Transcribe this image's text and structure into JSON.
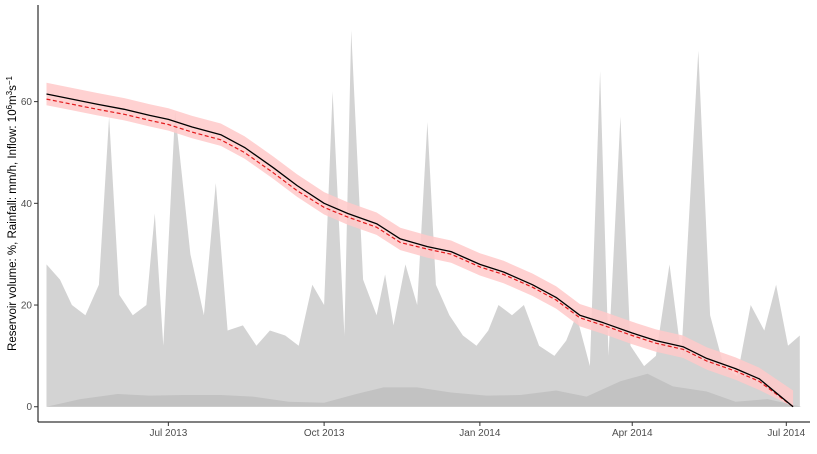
{
  "chart_data": {
    "type": "area",
    "title": "",
    "xlabel": "",
    "ylabel_parts": [
      "Reservoir volume: %, Rainfall: mm/h, Inflow: 10",
      "6",
      "m",
      "3",
      "s",
      "−1"
    ],
    "xlim": [
      "2013-04-15",
      "2014-07-15"
    ],
    "ylim": [
      -3,
      79
    ],
    "x_ticks": [
      {
        "date": "2013-07-01",
        "label": "Jul 2013"
      },
      {
        "date": "2013-10-01",
        "label": "Oct 2013"
      },
      {
        "date": "2014-01-01",
        "label": "Jan 2014"
      },
      {
        "date": "2014-04-01",
        "label": "Apr 2014"
      },
      {
        "date": "2014-07-01",
        "label": "Jul 2014"
      }
    ],
    "y_ticks": [
      0,
      20,
      40,
      60
    ],
    "grid": false,
    "legend": "none",
    "colors": {
      "inflow": "#d3d3d3",
      "rainfall": "#c2c2c2",
      "band": "#ffc9c9",
      "observed": "#000000",
      "predicted": "#e31a1c",
      "axis": "#000000",
      "tick_text": "#4d4d4d"
    },
    "series": [
      {
        "key": "inflow",
        "style": "area",
        "dates": [
          "2013-04-20",
          "2013-04-28",
          "2013-05-05",
          "2013-05-13",
          "2013-05-21",
          "2013-05-27",
          "2013-06-02",
          "2013-06-10",
          "2013-06-18",
          "2013-06-23",
          "2013-06-28",
          "2013-07-05",
          "2013-07-14",
          "2013-07-22",
          "2013-07-29",
          "2013-08-05",
          "2013-08-14",
          "2013-08-22",
          "2013-08-30",
          "2013-09-08",
          "2013-09-16",
          "2013-09-24",
          "2013-10-01",
          "2013-10-06",
          "2013-10-13",
          "2013-10-17",
          "2013-10-24",
          "2013-11-01",
          "2013-11-06",
          "2013-11-11",
          "2013-11-18",
          "2013-11-25",
          "2013-12-01",
          "2013-12-06",
          "2013-12-14",
          "2013-12-22",
          "2013-12-30",
          "2014-01-06",
          "2014-01-12",
          "2014-01-20",
          "2014-01-27",
          "2014-02-05",
          "2014-02-14",
          "2014-02-21",
          "2014-02-27",
          "2014-03-07",
          "2014-03-13",
          "2014-03-18",
          "2014-03-25",
          "2014-03-31",
          "2014-04-08",
          "2014-04-15",
          "2014-04-23",
          "2014-04-30",
          "2014-05-10",
          "2014-05-17",
          "2014-05-25",
          "2014-06-02",
          "2014-06-10",
          "2014-06-18",
          "2014-06-25",
          "2014-07-02",
          "2014-07-09"
        ],
        "values": [
          28,
          25,
          20,
          18,
          24,
          57,
          22,
          18,
          20,
          38,
          12,
          58,
          30,
          18,
          44,
          15,
          16,
          12,
          15,
          14,
          12,
          24,
          20,
          62,
          14,
          74,
          25,
          18,
          26,
          16,
          28,
          20,
          56,
          24,
          18,
          14,
          12,
          15,
          20,
          18,
          20,
          12,
          10,
          13,
          18,
          8,
          66,
          10,
          57,
          12,
          8,
          10,
          28,
          10,
          70,
          18,
          8,
          6,
          20,
          15,
          24,
          12,
          14
        ]
      },
      {
        "key": "rainfall",
        "style": "area",
        "dates": [
          "2013-04-20",
          "2013-05-10",
          "2013-06-01",
          "2013-06-20",
          "2013-07-10",
          "2013-08-01",
          "2013-08-20",
          "2013-09-10",
          "2013-10-01",
          "2013-10-20",
          "2013-11-05",
          "2013-11-25",
          "2013-12-15",
          "2014-01-05",
          "2014-01-25",
          "2014-02-15",
          "2014-03-05",
          "2014-03-25",
          "2014-04-10",
          "2014-04-25",
          "2014-05-15",
          "2014-06-01",
          "2014-06-20",
          "2014-07-10"
        ],
        "values": [
          0,
          1.5,
          2.5,
          2.2,
          2.3,
          2.3,
          2,
          1,
          0.8,
          2.5,
          3.8,
          3.8,
          2.8,
          2.2,
          2.3,
          3.2,
          2,
          5,
          6.5,
          4,
          3,
          1,
          1.5,
          0
        ]
      },
      {
        "key": "band",
        "style": "ribbon",
        "half_width": 2.2,
        "dates": [
          "2013-04-20",
          "2013-05-05",
          "2013-05-20",
          "2013-06-05",
          "2013-06-20",
          "2013-07-01",
          "2013-07-15",
          "2013-08-01",
          "2013-08-15",
          "2013-09-01",
          "2013-09-15",
          "2013-10-01",
          "2013-10-15",
          "2013-11-01",
          "2013-11-15",
          "2013-12-01",
          "2013-12-15",
          "2014-01-01",
          "2014-01-15",
          "2014-02-01",
          "2014-02-15",
          "2014-03-01",
          "2014-03-15",
          "2014-04-01",
          "2014-04-15",
          "2014-05-01",
          "2014-05-15",
          "2014-06-01",
          "2014-06-15",
          "2014-07-05"
        ],
        "values": [
          61.5,
          60.5,
          59.5,
          58.5,
          57.3,
          56.5,
          55,
          53.5,
          51,
          47,
          43.5,
          40,
          38,
          36,
          33,
          31.5,
          30.5,
          28,
          26.5,
          24,
          21.5,
          18,
          16.5,
          14.5,
          13,
          11.8,
          9.5,
          7.5,
          5.5,
          1
        ]
      },
      {
        "key": "observed",
        "style": "line",
        "dates": [
          "2013-04-20",
          "2013-05-05",
          "2013-05-20",
          "2013-06-05",
          "2013-06-20",
          "2013-07-01",
          "2013-07-15",
          "2013-08-01",
          "2013-08-15",
          "2013-09-01",
          "2013-09-15",
          "2013-10-01",
          "2013-10-15",
          "2013-11-01",
          "2013-11-15",
          "2013-12-01",
          "2013-12-15",
          "2014-01-01",
          "2014-01-15",
          "2014-02-01",
          "2014-02-15",
          "2014-03-01",
          "2014-03-15",
          "2014-04-01",
          "2014-04-15",
          "2014-05-01",
          "2014-05-15",
          "2014-06-01",
          "2014-06-15",
          "2014-07-05"
        ],
        "values": [
          61.5,
          60.5,
          59.5,
          58.5,
          57.3,
          56.5,
          55,
          53.5,
          51,
          47,
          43.5,
          40,
          38,
          36,
          33,
          31.5,
          30.5,
          28,
          26.5,
          24,
          21.5,
          18,
          16.5,
          14.5,
          13,
          11.8,
          9.5,
          7.5,
          5.5,
          0
        ]
      },
      {
        "key": "predicted",
        "style": "dashed",
        "dates": [
          "2013-04-20",
          "2013-05-05",
          "2013-05-20",
          "2013-06-05",
          "2013-06-20",
          "2013-07-01",
          "2013-07-15",
          "2013-08-01",
          "2013-08-15",
          "2013-09-01",
          "2013-09-15",
          "2013-10-01",
          "2013-10-15",
          "2013-11-01",
          "2013-11-15",
          "2013-12-01",
          "2013-12-15",
          "2014-01-01",
          "2014-01-15",
          "2014-02-01",
          "2014-02-15",
          "2014-03-01",
          "2014-03-15",
          "2014-04-01",
          "2014-04-15",
          "2014-05-01",
          "2014-05-15",
          "2014-06-01",
          "2014-06-15",
          "2014-07-05"
        ],
        "values": [
          60.5,
          59.5,
          58.5,
          57.5,
          56.3,
          55.5,
          54,
          52.5,
          50,
          46,
          42.5,
          39.2,
          37.3,
          35.3,
          32.3,
          31,
          30,
          27.5,
          26,
          23.5,
          21,
          17.5,
          16,
          14,
          12.5,
          11.3,
          9,
          7,
          5,
          0
        ]
      }
    ]
  }
}
